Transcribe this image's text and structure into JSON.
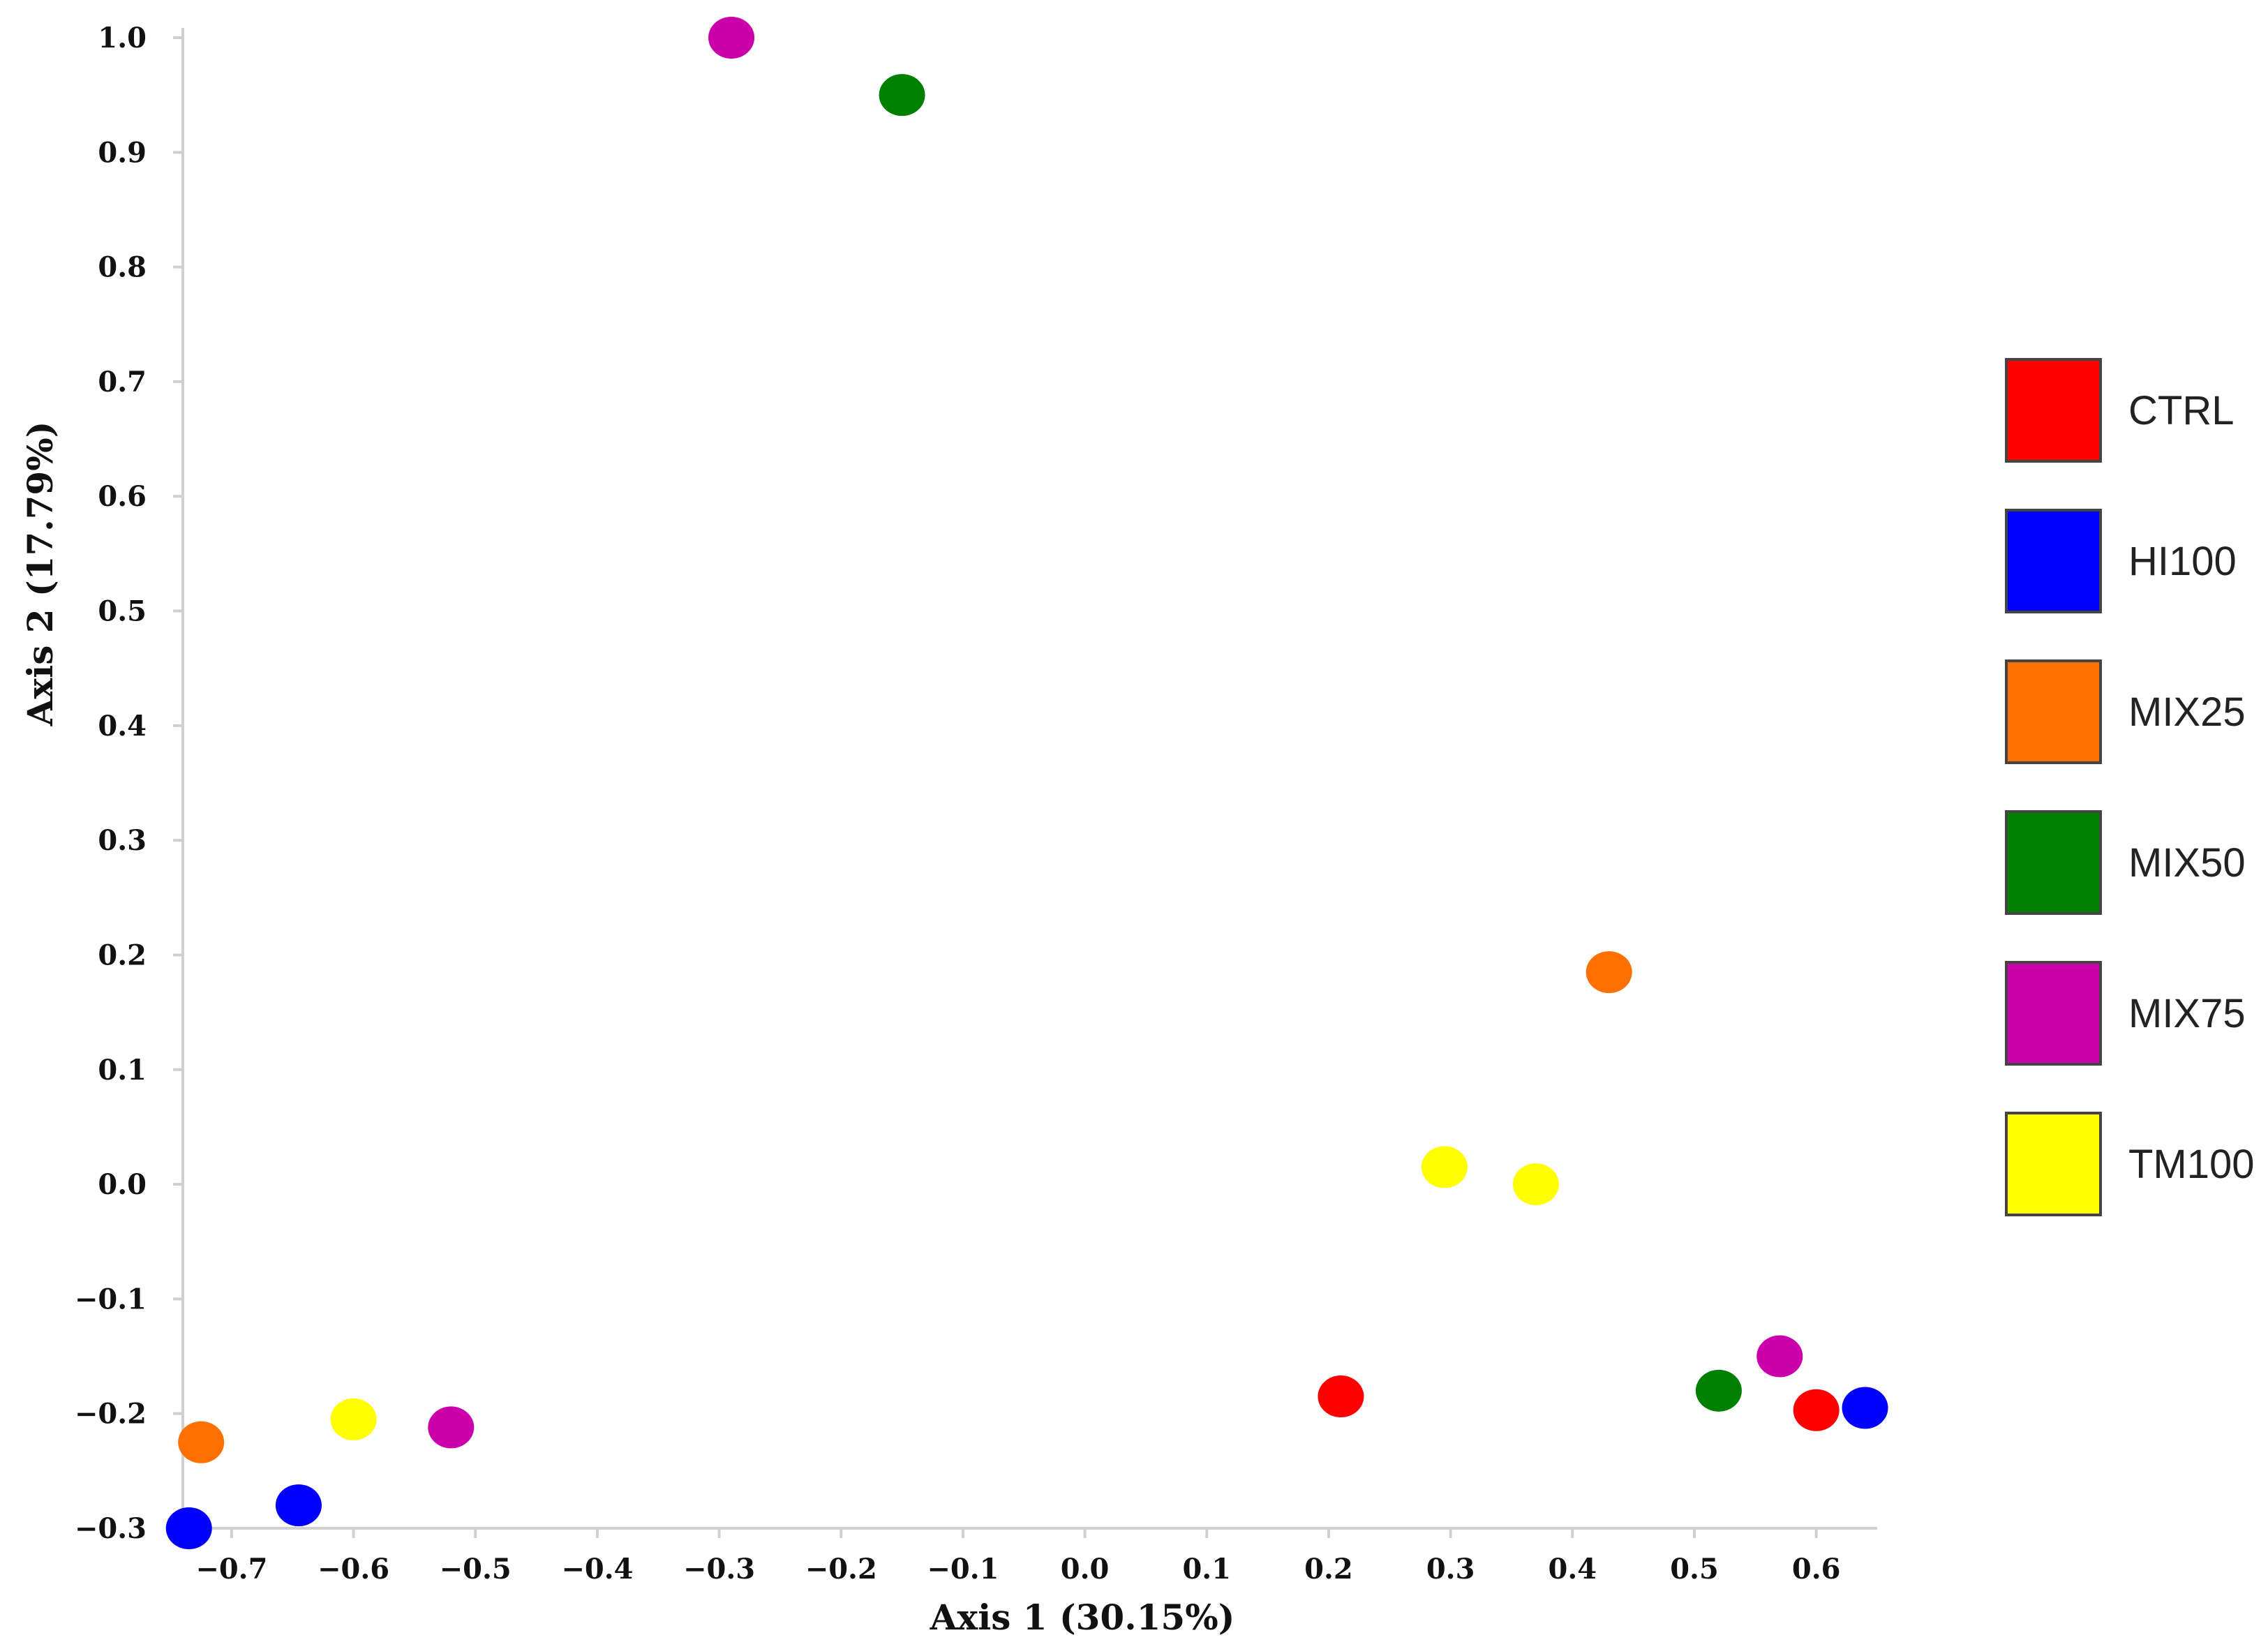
{
  "chart_data": {
    "type": "scatter",
    "xlabel": "Axis 1 (30.15%)",
    "ylabel": "Axis 2 (17.79%)",
    "xlim": [
      -0.74,
      0.65
    ],
    "ylim": [
      -0.3,
      1.0
    ],
    "x_ticks": [
      -0.7,
      -0.6,
      -0.5,
      -0.4,
      -0.3,
      -0.2,
      -0.1,
      0.0,
      0.1,
      0.2,
      0.3,
      0.4,
      0.5,
      0.6
    ],
    "x_tick_labels": [
      "−0.7",
      "−0.6",
      "−0.5",
      "−0.4",
      "−0.3",
      "−0.2",
      "−0.1",
      "0.0",
      "0.1",
      "0.2",
      "0.3",
      "0.4",
      "0.5",
      "0.6"
    ],
    "y_ticks": [
      -0.3,
      -0.2,
      -0.1,
      0.0,
      0.1,
      0.2,
      0.3,
      0.4,
      0.5,
      0.6,
      0.7,
      0.8,
      0.9,
      1.0
    ],
    "y_tick_labels": [
      "−0.3",
      "−0.2",
      "−0.1",
      "0.0",
      "0.1",
      "0.2",
      "0.3",
      "0.4",
      "0.5",
      "0.6",
      "0.7",
      "0.8",
      "0.9",
      "1.0"
    ],
    "grid": false,
    "legend_position": "right",
    "series": [
      {
        "name": "CTRL",
        "color": "#ff0000",
        "points": [
          [
            0.21,
            -0.185
          ],
          [
            0.6,
            -0.197
          ]
        ]
      },
      {
        "name": "HI100",
        "color": "#0000ff",
        "points": [
          [
            -0.735,
            -0.3
          ],
          [
            -0.645,
            -0.28
          ],
          [
            0.64,
            -0.195
          ]
        ]
      },
      {
        "name": "MIX25",
        "color": "#ff7000",
        "points": [
          [
            -0.725,
            -0.225
          ],
          [
            0.43,
            0.185
          ]
        ]
      },
      {
        "name": "MIX50",
        "color": "#008000",
        "points": [
          [
            -0.15,
            0.95
          ],
          [
            0.52,
            -0.18
          ]
        ]
      },
      {
        "name": "MIX75",
        "color": "#cc00aa",
        "points": [
          [
            -0.29,
            1.0
          ],
          [
            -0.52,
            -0.212
          ],
          [
            0.57,
            -0.15
          ]
        ]
      },
      {
        "name": "TM100",
        "color": "#ffff00",
        "points": [
          [
            -0.6,
            -0.205
          ],
          [
            0.295,
            0.015
          ],
          [
            0.37,
            0.0
          ]
        ]
      }
    ]
  }
}
